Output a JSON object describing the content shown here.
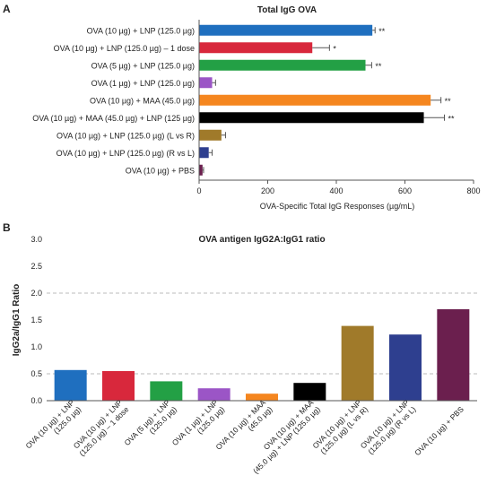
{
  "chart_data": [
    {
      "type": "bar",
      "orientation": "horizontal",
      "panel_label": "A",
      "title": "Total IgG OVA",
      "xlabel": "OVA-Specific Total IgG Responses  (µg/mL)",
      "ylabel": "",
      "xlim": [
        0,
        800
      ],
      "ticks": [
        "0",
        "200",
        "400",
        "600",
        "800"
      ],
      "grid": false,
      "categories": [
        "OVA (10 µg) + LNP (125.0 µg)",
        "OVA (10 µg) + LNP (125.0 µg) – 1 dose",
        "OVA (5 µg) + LNP (125.0 µg)",
        "OVA (1 µg) + LNP (125.0 µg)",
        "OVA (10 µg) + MAA (45.0 µg)",
        "OVA (10 µg) + MAA (45.0 µg) + LNP (125 µg)",
        "OVA (10 µg) + LNP (125.0 µg) (L vs R)",
        "OVA (10 µg) + LNP (125.0 µg) (R vs L)",
        "OVA (10 µg) + PBS"
      ],
      "values": [
        505,
        330,
        485,
        38,
        675,
        655,
        65,
        28,
        10
      ],
      "errors": [
        8,
        50,
        18,
        10,
        30,
        60,
        12,
        10,
        3
      ],
      "colors": [
        "#1f6fbf",
        "#d8283c",
        "#23a045",
        "#9b55c6",
        "#f5861f",
        "#000000",
        "#a07a2a",
        "#2e3f8f",
        "#6b1f4e"
      ],
      "annotations": [
        "**",
        "*",
        "**",
        "",
        "**",
        "**",
        "",
        "",
        ""
      ]
    },
    {
      "type": "bar",
      "panel_label": "B",
      "title": "OVA antigen IgG2A:IgG1 ratio",
      "xlabel": "",
      "ylabel": "IgG2a/IgG1 Ratio",
      "ylim": [
        0,
        3.0
      ],
      "ticks": [
        "0.0",
        "0.5",
        "1.0",
        "1.5",
        "2.0",
        "2.5",
        "3.0"
      ],
      "reference_lines": [
        0.5,
        2.0
      ],
      "categories": [
        [
          "OVA (10 µg) + LNP",
          "(125.0 µg)"
        ],
        [
          "OVA (10 µg) + LNP",
          "(125.0 µg) – 1 dose"
        ],
        [
          "OVA (5 µg) + LNP",
          "(125.0 µg)"
        ],
        [
          "OVA (1 µg) + LNP",
          "(125.0 µg)"
        ],
        [
          "OVA (10 µg) + MAA",
          "(45.0 µg)"
        ],
        [
          "OVA (10 µg) + MAA",
          "(45.0 µg) + LNP (125.0 µg)"
        ],
        [
          "OVA (10 µg) + LNP",
          "(125.0 µg) (L vs R)"
        ],
        [
          "OVA (10 µg) + LNP",
          "(125.0 µg) (R vs L)"
        ],
        [
          "OVA (10 µg) + PBS"
        ]
      ],
      "values": [
        0.57,
        0.55,
        0.36,
        0.23,
        0.13,
        0.33,
        1.39,
        1.23,
        1.7
      ],
      "colors": [
        "#1f6fbf",
        "#d8283c",
        "#23a045",
        "#9b55c6",
        "#f5861f",
        "#000000",
        "#a07a2a",
        "#2e3f8f",
        "#6b1f4e"
      ]
    }
  ]
}
